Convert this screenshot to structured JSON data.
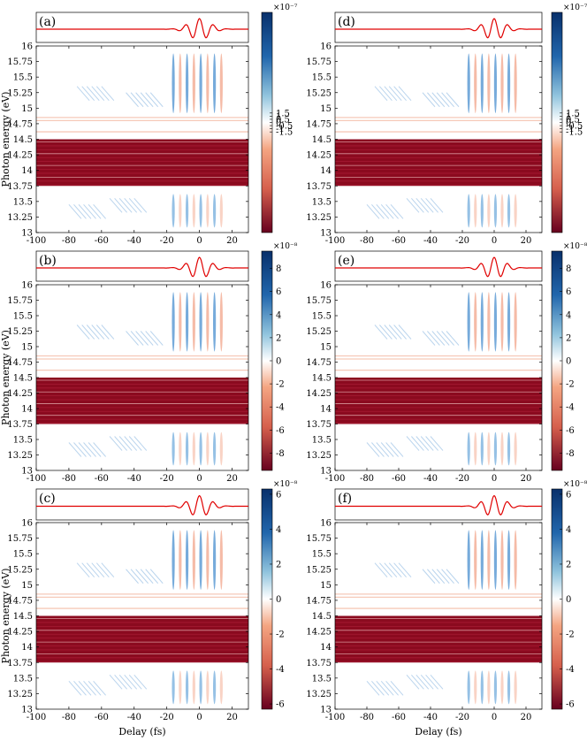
{
  "chart_data": [
    {
      "type": "heatmap",
      "label": "(a)",
      "xlabel": "",
      "ylabel": "Photon energy (eV)",
      "xlim": [
        -100,
        30
      ],
      "ylim": [
        13,
        16
      ],
      "xticks": [
        "-100",
        "-80",
        "-60",
        "-40",
        "-20",
        "0",
        "20"
      ],
      "yticks": [
        "13",
        "13.25",
        "13.5",
        "13.75",
        "14",
        "14.25",
        "14.5",
        "14.75",
        "15",
        "15.25",
        "15.5",
        "15.75",
        "16"
      ],
      "colorbar": {
        "min": -1.75e-07,
        "max": 1.75e-07,
        "ticks": [
          "1.5",
          "1",
          "0.5",
          "0",
          "-0.5",
          "-1",
          "-1.5"
        ],
        "exponent": "×10⁻⁷"
      }
    },
    {
      "type": "heatmap",
      "label": "(d)",
      "xlabel": "",
      "ylabel": "",
      "xlim": [
        -100,
        30
      ],
      "ylim": [
        13,
        16
      ],
      "xticks": [
        "-100",
        "-80",
        "-60",
        "-40",
        "-20",
        "0",
        "20"
      ],
      "yticks": [
        "13",
        "13.25",
        "13.5",
        "13.75",
        "14",
        "14.25",
        "14.5",
        "14.75",
        "15",
        "15.25",
        "15.5",
        "15.75",
        "16"
      ],
      "colorbar": {
        "min": -1.75e-07,
        "max": 1.75e-07,
        "ticks": [
          "1.5",
          "1",
          "0.5",
          "0",
          "-0.5",
          "-1",
          "-1.5"
        ],
        "exponent": "×10⁻⁷"
      }
    },
    {
      "type": "heatmap",
      "label": "(b)",
      "xlabel": "",
      "ylabel": "Photon energy (eV)",
      "xlim": [
        -100,
        30
      ],
      "ylim": [
        13,
        16
      ],
      "xticks": [
        "-100",
        "-80",
        "-60",
        "-40",
        "-20",
        "0",
        "20"
      ],
      "yticks": [
        "13",
        "13.25",
        "13.5",
        "13.75",
        "14",
        "14.25",
        "14.5",
        "14.75",
        "15",
        "15.25",
        "15.5",
        "15.75",
        "16"
      ],
      "colorbar": {
        "min": -9.5e-08,
        "max": 9.5e-08,
        "ticks": [
          "8",
          "6",
          "4",
          "2",
          "0",
          "-2",
          "-4",
          "-6",
          "-8"
        ],
        "exponent": "×10⁻⁸"
      }
    },
    {
      "type": "heatmap",
      "label": "(e)",
      "xlabel": "",
      "ylabel": "",
      "xlim": [
        -100,
        30
      ],
      "ylim": [
        13,
        16
      ],
      "xticks": [
        "-100",
        "-80",
        "-60",
        "-40",
        "-20",
        "0",
        "20"
      ],
      "yticks": [
        "13",
        "13.25",
        "13.5",
        "13.75",
        "14",
        "14.25",
        "14.5",
        "14.75",
        "15",
        "15.25",
        "15.5",
        "15.75",
        "16"
      ],
      "colorbar": {
        "min": -9.5e-08,
        "max": 9.5e-08,
        "ticks": [
          "8",
          "6",
          "4",
          "2",
          "0",
          "-2",
          "-4",
          "-6",
          "-8"
        ],
        "exponent": "×10⁻⁸"
      }
    },
    {
      "type": "heatmap",
      "label": "(c)",
      "xlabel": "Delay (fs)",
      "ylabel": "Photon energy (eV)",
      "xlim": [
        -100,
        30
      ],
      "ylim": [
        13,
        16
      ],
      "xticks": [
        "-100",
        "-80",
        "-60",
        "-40",
        "-20",
        "0",
        "20"
      ],
      "yticks": [
        "13",
        "13.25",
        "13.5",
        "13.75",
        "14",
        "14.25",
        "14.5",
        "14.75",
        "15",
        "15.25",
        "15.5",
        "15.75",
        "16"
      ],
      "colorbar": {
        "min": -6.3e-08,
        "max": 6.3e-08,
        "ticks": [
          "6",
          "4",
          "2",
          "0",
          "-2",
          "-4",
          "-6"
        ],
        "exponent": "×10⁻⁸"
      }
    },
    {
      "type": "heatmap",
      "label": "(f)",
      "xlabel": "Delay (fs)",
      "ylabel": "",
      "xlim": [
        -100,
        30
      ],
      "ylim": [
        13,
        16
      ],
      "xticks": [
        "-100",
        "-80",
        "-60",
        "-40",
        "-20",
        "0",
        "20"
      ],
      "yticks": [
        "13",
        "13.25",
        "13.5",
        "13.75",
        "14",
        "14.25",
        "14.5",
        "14.75",
        "15",
        "15.25",
        "15.5",
        "15.75",
        "16"
      ],
      "colorbar": {
        "min": -6.3e-08,
        "max": 6.3e-08,
        "ticks": [
          "6",
          "4",
          "2",
          "0",
          "-2",
          "-4",
          "-6"
        ],
        "exponent": "×10⁻⁸"
      }
    }
  ],
  "colors": {
    "positive": "#0b3f7a",
    "negative": "#8b0a1f",
    "neutral": "#ffffff",
    "pulse": "#e00000"
  }
}
